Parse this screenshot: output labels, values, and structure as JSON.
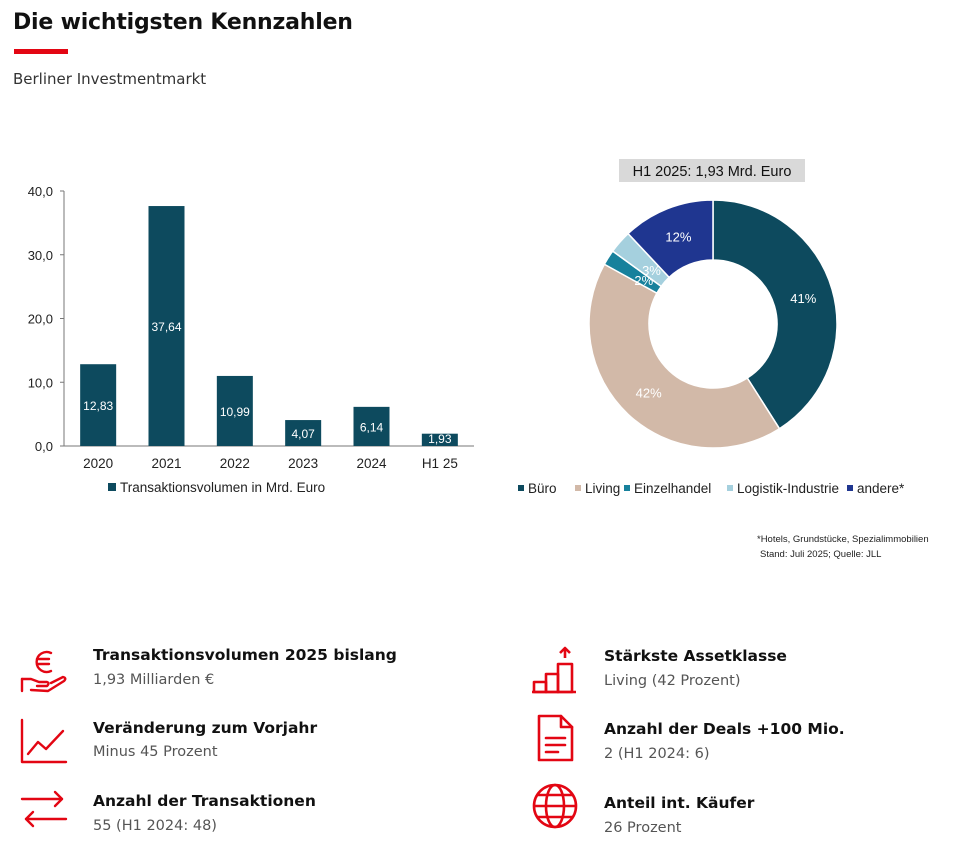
{
  "header": {
    "title": "Die wichtigsten Kennzahlen",
    "subtitle": "Berliner Investmentmarkt"
  },
  "colors": {
    "accent": "#e30613",
    "bar": "#0d4a5e",
    "buero": "#0d4a5e",
    "living": "#d2b9a8",
    "einzelhandel": "#17819c",
    "logistik": "#a5d0de",
    "andere": "#1f3690"
  },
  "chart_data": [
    {
      "type": "bar",
      "categories": [
        "2020",
        "2021",
        "2022",
        "2023",
        "2024",
        "H1 25"
      ],
      "series": [
        {
          "name": "Transaktionsvolumen in Mrd. Euro",
          "values": [
            12.83,
            37.64,
            10.99,
            4.07,
            6.14,
            1.93
          ]
        }
      ],
      "data_labels": [
        "12,83",
        "37,64",
        "10,99",
        "4,07",
        "6,14",
        "1,93"
      ],
      "y_ticks": [
        "0,0",
        "10,0",
        "20,0",
        "30,0",
        "40,0"
      ],
      "ylim": [
        0,
        40
      ],
      "grid": false,
      "legend_position": "bottom"
    },
    {
      "type": "pie",
      "title": "H1 2025: 1,93 Mrd. Euro",
      "donut": true,
      "slices": [
        {
          "name": "Büro",
          "value": 41,
          "label": "41%"
        },
        {
          "name": "Living",
          "value": 42,
          "label": "42%"
        },
        {
          "name": "Einzelhandel",
          "value": 2,
          "label": "2%"
        },
        {
          "name": "Logistik-Industrie",
          "value": 3,
          "label": "3%"
        },
        {
          "name": "andere*",
          "value": 12,
          "label": "12%"
        }
      ],
      "legend_position": "bottom"
    }
  ],
  "footnote": {
    "line1": "*Hotels, Grundstücke, Spezialimmobilien",
    "line2": "Stand: Juli 2025; Quelle: JLL"
  },
  "kpis": [
    {
      "icon": "euro-hand-icon",
      "title": "Transaktionsvolumen 2025 bislang",
      "value": "1,93 Milliarden  €"
    },
    {
      "icon": "trend-line-icon",
      "title": "Veränderung zum Vorjahr",
      "value": "Minus 45 Prozent"
    },
    {
      "icon": "exchange-arrows-icon",
      "title": "Anzahl der Transaktionen",
      "value": "55 (H1 2024: 48)"
    },
    {
      "icon": "rising-steps-icon",
      "title": "Stärkste Assetklasse",
      "value": "Living (42 Prozent)"
    },
    {
      "icon": "document-icon",
      "title": "Anzahl der Deals +100 Mio.",
      "value": "2 (H1 2024: 6)"
    },
    {
      "icon": "globe-icon",
      "title": "Anteil int. Käufer",
      "value": "26 Prozent"
    }
  ]
}
